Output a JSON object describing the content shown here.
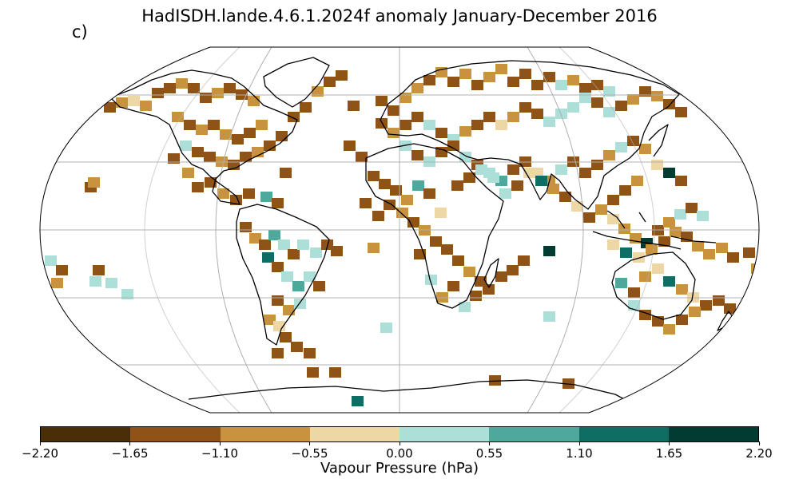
{
  "title": "HadISDH.lande.4.6.1.2024f anomaly January-December 2016",
  "panel_letter": "c)",
  "colorbar": {
    "label": "Vapour Pressure (hPa)",
    "ticks": [
      "−2.20",
      "−1.65",
      "−1.10",
      "−0.55",
      "0.00",
      "0.55",
      "1.10",
      "1.65",
      "2.20"
    ],
    "colors": [
      "#4a2e08",
      "#8f5217",
      "#c8923f",
      "#ecd7a5",
      "#acdfd7",
      "#4ea89c",
      "#0f6e63",
      "#023b31"
    ]
  },
  "colors": {
    "frame": "#000000",
    "graticule": "#b0b0b0",
    "coast": "#000000"
  }
}
